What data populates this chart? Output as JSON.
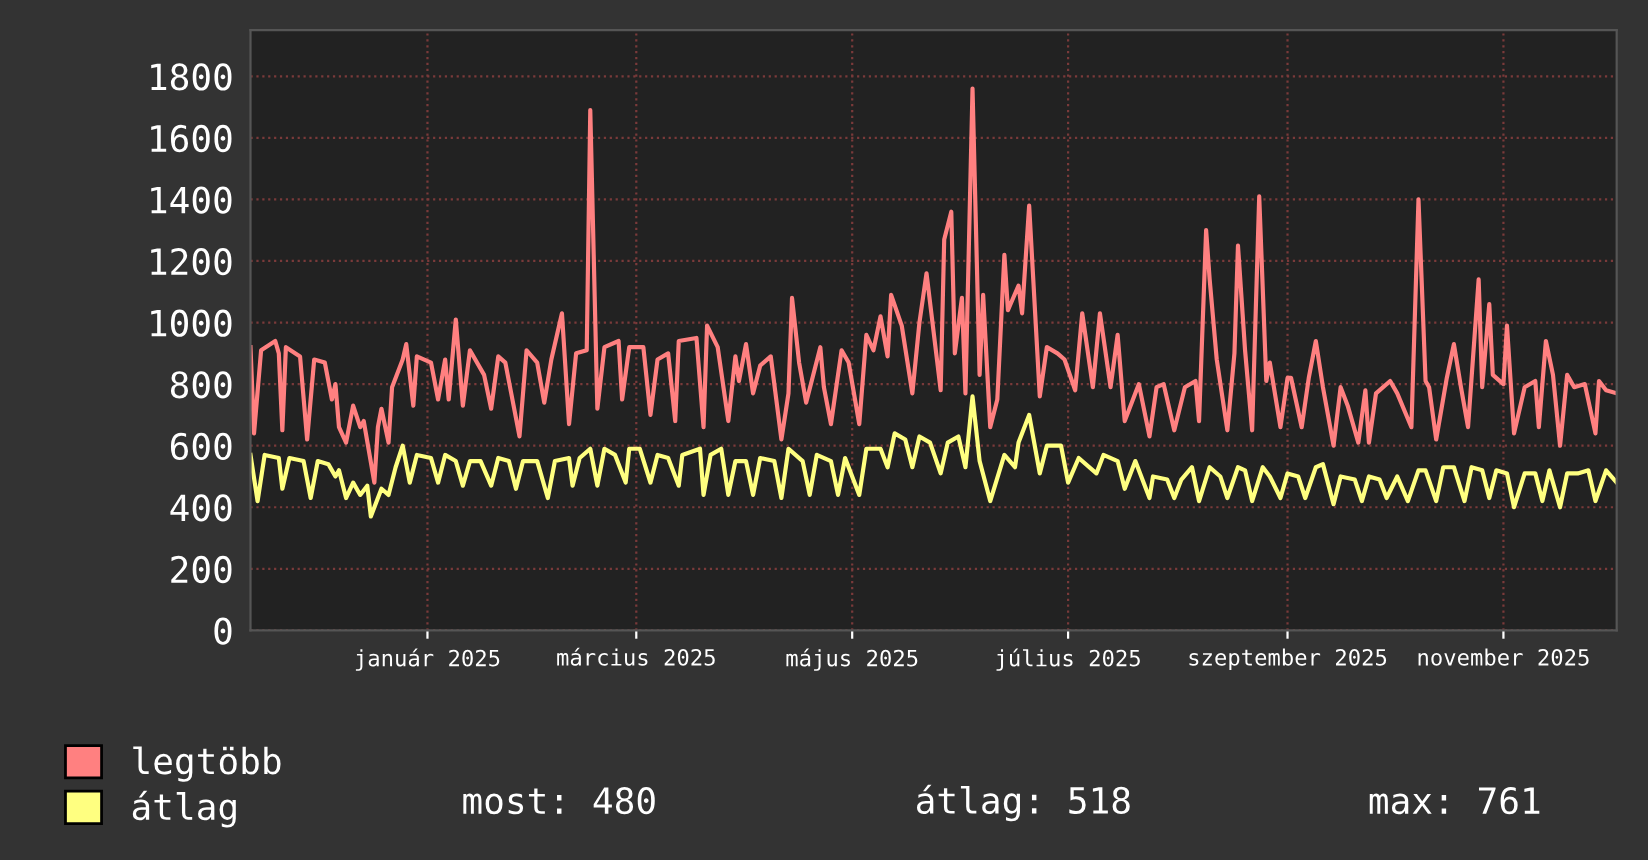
{
  "chart_data": {
    "type": "line",
    "xlim": [
      "2024-11-12",
      "2025-12-03"
    ],
    "xticks": [
      {
        "value": "2025-01-01",
        "label": "január 2025"
      },
      {
        "value": "2025-03-01",
        "label": "március 2025"
      },
      {
        "value": "2025-05-01",
        "label": "május 2025"
      },
      {
        "value": "2025-07-01",
        "label": "július 2025"
      },
      {
        "value": "2025-09-01",
        "label": "szeptember 2025"
      },
      {
        "value": "2025-11-01",
        "label": "november 2025"
      }
    ],
    "ylim": [
      0,
      1950
    ],
    "yticks": [
      0,
      200,
      400,
      600,
      800,
      1000,
      1200,
      1400,
      1600,
      1800
    ],
    "grid": true,
    "legend": "bottom left",
    "annotations": [
      "most: 480",
      "átlag: 518",
      "max: 761"
    ],
    "series": [
      {
        "name": "legtöbb",
        "color": "#ff8080",
        "x": [
          "2024-11-12",
          "2024-11-13",
          "2024-11-15",
          "2024-11-19",
          "2024-11-20",
          "2024-11-21",
          "2024-11-22",
          "2024-11-26",
          "2024-11-28",
          "2024-11-30",
          "2024-12-03",
          "2024-12-05",
          "2024-12-06",
          "2024-12-07",
          "2024-12-09",
          "2024-12-11",
          "2024-12-13",
          "2024-12-14",
          "2024-12-17",
          "2024-12-18",
          "2024-12-19",
          "2024-12-21",
          "2024-12-22",
          "2024-12-25",
          "2024-12-26",
          "2024-12-28",
          "2024-12-29",
          "2025-01-02",
          "2025-01-04",
          "2025-01-06",
          "2025-01-07",
          "2025-01-09",
          "2025-01-11",
          "2025-01-13",
          "2025-01-17",
          "2025-01-19",
          "2025-01-21",
          "2025-01-23",
          "2025-01-27",
          "2025-01-29",
          "2025-02-01",
          "2025-02-03",
          "2025-02-05",
          "2025-02-08",
          "2025-02-10",
          "2025-02-12",
          "2025-02-15",
          "2025-02-16",
          "2025-02-18",
          "2025-02-20",
          "2025-02-24",
          "2025-02-25",
          "2025-02-27",
          "2025-03-03",
          "2025-03-05",
          "2025-03-07",
          "2025-03-10",
          "2025-03-12",
          "2025-03-13",
          "2025-03-18",
          "2025-03-20",
          "2025-03-21",
          "2025-03-24",
          "2025-03-27",
          "2025-03-29",
          "2025-03-30",
          "2025-04-01",
          "2025-04-03",
          "2025-04-05",
          "2025-04-08",
          "2025-04-11",
          "2025-04-13",
          "2025-04-14",
          "2025-04-16",
          "2025-04-18",
          "2025-04-22",
          "2025-04-23",
          "2025-04-25",
          "2025-04-28",
          "2025-04-30",
          "2025-05-03",
          "2025-05-05",
          "2025-05-07",
          "2025-05-09",
          "2025-05-11",
          "2025-05-12",
          "2025-05-15",
          "2025-05-18",
          "2025-05-20",
          "2025-05-22",
          "2025-05-26",
          "2025-05-27",
          "2025-05-29",
          "2025-05-30",
          "2025-06-01",
          "2025-06-02",
          "2025-06-04",
          "2025-06-06",
          "2025-06-07",
          "2025-06-09",
          "2025-06-11",
          "2025-06-13",
          "2025-06-14",
          "2025-06-17",
          "2025-06-18",
          "2025-06-20",
          "2025-06-23",
          "2025-06-25",
          "2025-06-28",
          "2025-06-30",
          "2025-07-03",
          "2025-07-05",
          "2025-07-08",
          "2025-07-10",
          "2025-07-13",
          "2025-07-15",
          "2025-07-17",
          "2025-07-21",
          "2025-07-24",
          "2025-07-26",
          "2025-07-28",
          "2025-07-31",
          "2025-08-03",
          "2025-08-06",
          "2025-08-07",
          "2025-08-09",
          "2025-08-10",
          "2025-08-12",
          "2025-08-15",
          "2025-08-17",
          "2025-08-18",
          "2025-08-20",
          "2025-08-22",
          "2025-08-24",
          "2025-08-26",
          "2025-08-27",
          "2025-08-30",
          "2025-09-01",
          "2025-09-02",
          "2025-09-05",
          "2025-09-07",
          "2025-09-09",
          "2025-09-11",
          "2025-09-14",
          "2025-09-16",
          "2025-09-18",
          "2025-09-21",
          "2025-09-23",
          "2025-09-24",
          "2025-09-26",
          "2025-09-30",
          "2025-10-02",
          "2025-10-06",
          "2025-10-08",
          "2025-10-10",
          "2025-10-11",
          "2025-10-13",
          "2025-10-16",
          "2025-10-18",
          "2025-10-20",
          "2025-10-22",
          "2025-10-25",
          "2025-10-26",
          "2025-10-28",
          "2025-10-29",
          "2025-11-01",
          "2025-11-02",
          "2025-11-04",
          "2025-11-07",
          "2025-11-10",
          "2025-11-11",
          "2025-11-13",
          "2025-11-15",
          "2025-11-17",
          "2025-11-19",
          "2025-11-21",
          "2025-11-24",
          "2025-11-27",
          "2025-11-28",
          "2025-11-30",
          "2025-12-03"
        ],
        "values": [
          920,
          640,
          910,
          940,
          900,
          650,
          920,
          890,
          620,
          880,
          870,
          750,
          800,
          660,
          610,
          730,
          660,
          680,
          480,
          660,
          720,
          610,
          790,
          880,
          930,
          730,
          890,
          870,
          750,
          880,
          750,
          1010,
          730,
          910,
          830,
          720,
          890,
          870,
          630,
          910,
          870,
          740,
          880,
          1030,
          670,
          900,
          910,
          1690,
          720,
          920,
          940,
          750,
          920,
          920,
          700,
          880,
          900,
          680,
          940,
          950,
          660,
          990,
          920,
          680,
          890,
          810,
          930,
          770,
          860,
          890,
          620,
          770,
          1080,
          870,
          740,
          920,
          790,
          670,
          910,
          870,
          670,
          960,
          910,
          1020,
          890,
          1090,
          990,
          770,
          1000,
          1160,
          780,
          1270,
          1360,
          900,
          1080,
          770,
          1760,
          830,
          1090,
          660,
          750,
          1220,
          1040,
          1120,
          1030,
          1380,
          760,
          920,
          900,
          880,
          780,
          1030,
          790,
          1030,
          790,
          960,
          680,
          800,
          630,
          790,
          800,
          650,
          790,
          810,
          680,
          1300,
          1140,
          880,
          650,
          900,
          1250,
          910,
          650,
          1410,
          810,
          870,
          660,
          820,
          820,
          660,
          820,
          940,
          790,
          600,
          790,
          730,
          610,
          780,
          610,
          770,
          810,
          770,
          660,
          1400,
          810,
          790,
          620,
          820,
          930,
          790,
          660,
          1140,
          790,
          1060,
          830,
          800,
          990,
          640,
          790,
          810,
          660,
          940,
          830,
          600,
          830,
          790,
          800,
          640,
          810,
          780,
          770
        ]
      },
      {
        "name": "átlag",
        "color": "#ffff80",
        "x": [
          "2024-11-12",
          "2024-11-14",
          "2024-11-16",
          "2024-11-20",
          "2024-11-21",
          "2024-11-23",
          "2024-11-27",
          "2024-11-29",
          "2024-12-01",
          "2024-12-04",
          "2024-12-06",
          "2024-12-07",
          "2024-12-09",
          "2024-12-11",
          "2024-12-13",
          "2024-12-15",
          "2024-12-16",
          "2024-12-19",
          "2024-12-21",
          "2024-12-23",
          "2024-12-25",
          "2024-12-27",
          "2024-12-29",
          "2025-01-02",
          "2025-01-04",
          "2025-01-06",
          "2025-01-09",
          "2025-01-11",
          "2025-01-13",
          "2025-01-16",
          "2025-01-19",
          "2025-01-21",
          "2025-01-24",
          "2025-01-26",
          "2025-01-28",
          "2025-02-01",
          "2025-02-04",
          "2025-02-06",
          "2025-02-10",
          "2025-02-11",
          "2025-02-13",
          "2025-02-16",
          "2025-02-18",
          "2025-02-20",
          "2025-02-23",
          "2025-02-26",
          "2025-02-27",
          "2025-03-02",
          "2025-03-05",
          "2025-03-07",
          "2025-03-10",
          "2025-03-13",
          "2025-03-14",
          "2025-03-19",
          "2025-03-20",
          "2025-03-22",
          "2025-03-25",
          "2025-03-27",
          "2025-03-29",
          "2025-04-01",
          "2025-04-03",
          "2025-04-05",
          "2025-04-09",
          "2025-04-11",
          "2025-04-13",
          "2025-04-17",
          "2025-04-19",
          "2025-04-21",
          "2025-04-25",
          "2025-04-27",
          "2025-04-29",
          "2025-05-03",
          "2025-05-05",
          "2025-05-09",
          "2025-05-11",
          "2025-05-13",
          "2025-05-16",
          "2025-05-18",
          "2025-05-20",
          "2025-05-23",
          "2025-05-26",
          "2025-05-28",
          "2025-05-31",
          "2025-06-02",
          "2025-06-04",
          "2025-06-06",
          "2025-06-09",
          "2025-06-13",
          "2025-06-16",
          "2025-06-17",
          "2025-06-20",
          "2025-06-23",
          "2025-06-25",
          "2025-06-29",
          "2025-07-01",
          "2025-07-04",
          "2025-07-09",
          "2025-07-11",
          "2025-07-15",
          "2025-07-17",
          "2025-07-20",
          "2025-07-24",
          "2025-07-25",
          "2025-07-29",
          "2025-07-31",
          "2025-08-02",
          "2025-08-05",
          "2025-08-07",
          "2025-08-10",
          "2025-08-13",
          "2025-08-15",
          "2025-08-18",
          "2025-08-20",
          "2025-08-22",
          "2025-08-25",
          "2025-08-27",
          "2025-08-30",
          "2025-09-01",
          "2025-09-04",
          "2025-09-06",
          "2025-09-09",
          "2025-09-11",
          "2025-09-14",
          "2025-09-16",
          "2025-09-20",
          "2025-09-22",
          "2025-09-24",
          "2025-09-27",
          "2025-09-29",
          "2025-10-02",
          "2025-10-05",
          "2025-10-08",
          "2025-10-10",
          "2025-10-13",
          "2025-10-15",
          "2025-10-18",
          "2025-10-21",
          "2025-10-23",
          "2025-10-26",
          "2025-10-28",
          "2025-10-30",
          "2025-11-02",
          "2025-11-04",
          "2025-11-07",
          "2025-11-10",
          "2025-11-12",
          "2025-11-14",
          "2025-11-17",
          "2025-11-19",
          "2025-11-22",
          "2025-11-25",
          "2025-11-27",
          "2025-11-30",
          "2025-12-03"
        ],
        "values": [
          570,
          420,
          570,
          560,
          460,
          560,
          550,
          430,
          550,
          540,
          500,
          520,
          430,
          480,
          440,
          470,
          370,
          460,
          440,
          530,
          600,
          480,
          570,
          560,
          480,
          570,
          550,
          470,
          550,
          550,
          470,
          560,
          550,
          460,
          550,
          550,
          430,
          550,
          560,
          470,
          560,
          590,
          470,
          590,
          570,
          480,
          590,
          590,
          480,
          570,
          560,
          470,
          570,
          590,
          440,
          570,
          590,
          440,
          550,
          550,
          440,
          560,
          550,
          430,
          590,
          550,
          440,
          570,
          550,
          440,
          560,
          440,
          590,
          590,
          530,
          640,
          620,
          530,
          630,
          610,
          510,
          610,
          630,
          530,
          760,
          550,
          420,
          570,
          530,
          610,
          700,
          510,
          600,
          600,
          480,
          560,
          510,
          570,
          550,
          460,
          550,
          430,
          500,
          490,
          430,
          490,
          530,
          420,
          530,
          500,
          430,
          530,
          520,
          420,
          530,
          500,
          430,
          510,
          500,
          430,
          530,
          540,
          410,
          500,
          490,
          420,
          500,
          490,
          430,
          500,
          420,
          520,
          520,
          420,
          530,
          530,
          420,
          530,
          520,
          430,
          520,
          510,
          400,
          510,
          510,
          420,
          520,
          400,
          510,
          510,
          520,
          420,
          520,
          480
        ]
      }
    ]
  }
}
